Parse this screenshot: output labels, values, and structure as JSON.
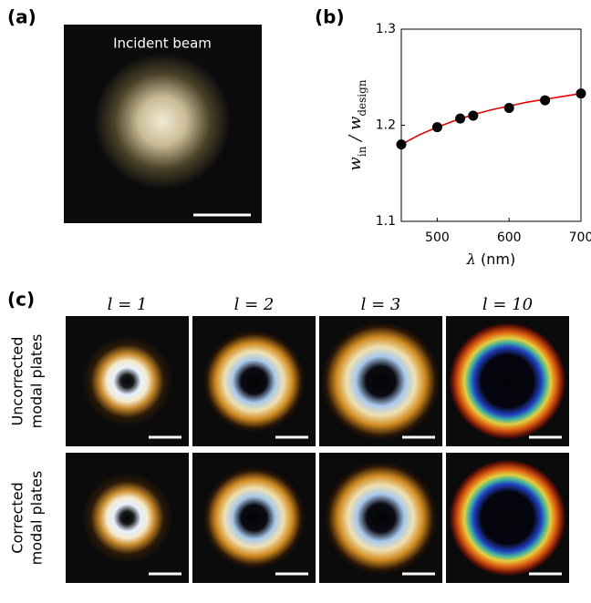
{
  "panel_labels": [
    "(a)",
    "(b)",
    "(c)"
  ],
  "incident_label": "Incident beam",
  "chart_data": {
    "type": "scatter",
    "xlabel": [
      "λ",
      " (nm)"
    ],
    "ylabel": [
      "w",
      "in",
      " / w",
      "design"
    ],
    "xlim": [
      450,
      700
    ],
    "xticks": [
      500,
      600,
      700
    ],
    "ylim": [
      1.1,
      1.3
    ],
    "yticks": [
      1.1,
      1.2,
      1.3
    ],
    "series": [
      {
        "color": "#e00000",
        "style": "line",
        "x": [
          450,
          475,
          500,
          525,
          550,
          575,
          600,
          625,
          650,
          675,
          700
        ],
        "values": [
          1.18,
          1.19,
          1.198,
          1.205,
          1.211,
          1.216,
          1.22,
          1.224,
          1.227,
          1.23,
          1.233
        ]
      },
      {
        "color": "#000000",
        "style": "marker",
        "x": [
          450,
          500,
          532,
          550,
          600,
          650,
          700
        ],
        "values": [
          1.18,
          1.198,
          1.207,
          1.21,
          1.218,
          1.226,
          1.233
        ]
      }
    ]
  },
  "column_labels": [
    "l = 1",
    "l = 2",
    "l = 3",
    "l = 10"
  ],
  "row_labels": [
    [
      "Uncorrected",
      "modal plates"
    ],
    [
      "Corrected",
      "modal plates"
    ]
  ]
}
